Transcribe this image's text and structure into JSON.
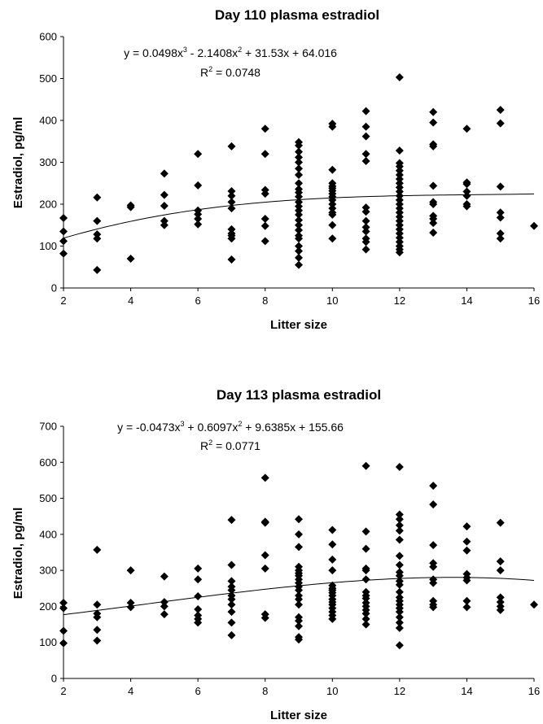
{
  "chart_data": [
    {
      "type": "scatter",
      "title": "Day 110 plasma estradiol",
      "xlabel": "Litter size",
      "ylabel": "Estradiol, pg/ml",
      "xlim": [
        2,
        16
      ],
      "ylim": [
        0,
        600
      ],
      "xticks": [
        "2",
        "4",
        "6",
        "8",
        "10",
        "12",
        "14",
        "16"
      ],
      "yticks": [
        "0",
        "100",
        "200",
        "300",
        "400",
        "500",
        "600"
      ],
      "grid": false,
      "legend": "none",
      "marker": "diamond",
      "equation": {
        "prefix": "y = 0.0498x",
        "exp1": "3",
        "mid1": " - 2.1408x",
        "exp2": "2",
        "rest": " + 31.53x + 64.016"
      },
      "r2": {
        "prefix": "R",
        "exp": "2",
        "rest": " = 0.0748"
      },
      "trendline": {
        "type": "cubic",
        "coefficients": [
          0.0498,
          -2.1408,
          31.53,
          64.016
        ]
      },
      "points": [
        [
          2,
          167
        ],
        [
          2,
          135
        ],
        [
          2,
          112
        ],
        [
          2,
          82
        ],
        [
          3,
          216
        ],
        [
          3,
          160
        ],
        [
          3,
          128
        ],
        [
          3,
          118
        ],
        [
          3,
          43
        ],
        [
          4,
          197
        ],
        [
          4,
          193
        ],
        [
          4,
          70
        ],
        [
          5,
          273
        ],
        [
          5,
          222
        ],
        [
          5,
          196
        ],
        [
          5,
          160
        ],
        [
          5,
          150
        ],
        [
          6,
          320
        ],
        [
          6,
          245
        ],
        [
          6,
          185
        ],
        [
          6,
          176
        ],
        [
          6,
          165
        ],
        [
          6,
          152
        ],
        [
          7,
          338
        ],
        [
          7,
          231
        ],
        [
          7,
          220
        ],
        [
          7,
          205
        ],
        [
          7,
          190
        ],
        [
          7,
          140
        ],
        [
          7,
          130
        ],
        [
          7,
          125
        ],
        [
          7,
          118
        ],
        [
          7,
          68
        ],
        [
          8,
          380
        ],
        [
          8,
          320
        ],
        [
          8,
          234
        ],
        [
          8,
          225
        ],
        [
          8,
          165
        ],
        [
          8,
          148
        ],
        [
          8,
          112
        ],
        [
          9,
          348
        ],
        [
          9,
          340
        ],
        [
          9,
          325
        ],
        [
          9,
          312
        ],
        [
          9,
          300
        ],
        [
          9,
          285
        ],
        [
          9,
          270
        ],
        [
          9,
          250
        ],
        [
          9,
          236
        ],
        [
          9,
          228
        ],
        [
          9,
          218
        ],
        [
          9,
          205
        ],
        [
          9,
          195
        ],
        [
          9,
          185
        ],
        [
          9,
          175
        ],
        [
          9,
          162
        ],
        [
          9,
          150
        ],
        [
          9,
          138
        ],
        [
          9,
          125
        ],
        [
          9,
          118
        ],
        [
          9,
          100
        ],
        [
          9,
          88
        ],
        [
          9,
          72
        ],
        [
          9,
          55
        ],
        [
          10,
          392
        ],
        [
          10,
          385
        ],
        [
          10,
          282
        ],
        [
          10,
          250
        ],
        [
          10,
          243
        ],
        [
          10,
          238
        ],
        [
          10,
          232
        ],
        [
          10,
          225
        ],
        [
          10,
          218
        ],
        [
          10,
          210
        ],
        [
          10,
          200
        ],
        [
          10,
          190
        ],
        [
          10,
          180
        ],
        [
          10,
          175
        ],
        [
          10,
          150
        ],
        [
          10,
          118
        ],
        [
          11,
          422
        ],
        [
          11,
          385
        ],
        [
          11,
          362
        ],
        [
          11,
          320
        ],
        [
          11,
          303
        ],
        [
          11,
          192
        ],
        [
          11,
          182
        ],
        [
          11,
          160
        ],
        [
          11,
          145
        ],
        [
          11,
          135
        ],
        [
          11,
          118
        ],
        [
          11,
          110
        ],
        [
          11,
          92
        ],
        [
          12,
          503
        ],
        [
          12,
          328
        ],
        [
          12,
          298
        ],
        [
          12,
          290
        ],
        [
          12,
          280
        ],
        [
          12,
          270
        ],
        [
          12,
          260
        ],
        [
          12,
          250
        ],
        [
          12,
          240
        ],
        [
          12,
          230
        ],
        [
          12,
          220
        ],
        [
          12,
          210
        ],
        [
          12,
          200
        ],
        [
          12,
          190
        ],
        [
          12,
          180
        ],
        [
          12,
          170
        ],
        [
          12,
          160
        ],
        [
          12,
          150
        ],
        [
          12,
          140
        ],
        [
          12,
          130
        ],
        [
          12,
          120
        ],
        [
          12,
          110
        ],
        [
          12,
          100
        ],
        [
          12,
          92
        ],
        [
          12,
          85
        ],
        [
          13,
          420
        ],
        [
          13,
          395
        ],
        [
          13,
          343
        ],
        [
          13,
          338
        ],
        [
          13,
          244
        ],
        [
          13,
          205
        ],
        [
          13,
          200
        ],
        [
          13,
          172
        ],
        [
          13,
          165
        ],
        [
          13,
          155
        ],
        [
          13,
          132
        ],
        [
          14,
          380
        ],
        [
          14,
          252
        ],
        [
          14,
          248
        ],
        [
          14,
          230
        ],
        [
          14,
          220
        ],
        [
          14,
          200
        ],
        [
          14,
          195
        ],
        [
          15,
          425
        ],
        [
          15,
          393
        ],
        [
          15,
          242
        ],
        [
          15,
          180
        ],
        [
          15,
          168
        ],
        [
          15,
          130
        ],
        [
          15,
          118
        ],
        [
          16,
          148
        ]
      ]
    },
    {
      "type": "scatter",
      "title": "Day 113 plasma estradiol",
      "xlabel": "Litter size",
      "ylabel": "Estradiol, pg/ml",
      "xlim": [
        2,
        16
      ],
      "ylim": [
        0,
        700
      ],
      "xticks": [
        "2",
        "4",
        "6",
        "8",
        "10",
        "12",
        "14",
        "16"
      ],
      "yticks": [
        "0",
        "100",
        "200",
        "300",
        "400",
        "500",
        "600",
        "700"
      ],
      "grid": false,
      "legend": "none",
      "marker": "diamond",
      "equation": {
        "prefix": "y = -0.0473x",
        "exp1": "3",
        "mid1": " + 0.6097x",
        "exp2": "2",
        "rest": " + 9.6385x + 155.66"
      },
      "r2": {
        "prefix": "R",
        "exp": "2",
        "rest": " = 0.0771"
      },
      "trendline": {
        "type": "cubic",
        "coefficients": [
          -0.0473,
          0.6097,
          9.6385,
          155.66
        ]
      },
      "points": [
        [
          2,
          210
        ],
        [
          2,
          195
        ],
        [
          2,
          132
        ],
        [
          2,
          98
        ],
        [
          3,
          357
        ],
        [
          3,
          205
        ],
        [
          3,
          180
        ],
        [
          3,
          170
        ],
        [
          3,
          135
        ],
        [
          3,
          105
        ],
        [
          4,
          300
        ],
        [
          4,
          210
        ],
        [
          4,
          198
        ],
        [
          5,
          283
        ],
        [
          5,
          212
        ],
        [
          5,
          200
        ],
        [
          5,
          178
        ],
        [
          6,
          305
        ],
        [
          6,
          275
        ],
        [
          6,
          228
        ],
        [
          6,
          192
        ],
        [
          6,
          175
        ],
        [
          6,
          165
        ],
        [
          6,
          155
        ],
        [
          7,
          440
        ],
        [
          7,
          315
        ],
        [
          7,
          270
        ],
        [
          7,
          255
        ],
        [
          7,
          245
        ],
        [
          7,
          230
        ],
        [
          7,
          220
        ],
        [
          7,
          205
        ],
        [
          7,
          185
        ],
        [
          7,
          155
        ],
        [
          7,
          120
        ],
        [
          8,
          557
        ],
        [
          8,
          435
        ],
        [
          8,
          432
        ],
        [
          8,
          342
        ],
        [
          8,
          305
        ],
        [
          8,
          178
        ],
        [
          8,
          168
        ],
        [
          9,
          442
        ],
        [
          9,
          400
        ],
        [
          9,
          365
        ],
        [
          9,
          310
        ],
        [
          9,
          300
        ],
        [
          9,
          292
        ],
        [
          9,
          285
        ],
        [
          9,
          275
        ],
        [
          9,
          265
        ],
        [
          9,
          255
        ],
        [
          9,
          245
        ],
        [
          9,
          230
        ],
        [
          9,
          220
        ],
        [
          9,
          205
        ],
        [
          9,
          170
        ],
        [
          9,
          160
        ],
        [
          9,
          145
        ],
        [
          9,
          115
        ],
        [
          9,
          108
        ],
        [
          10,
          412
        ],
        [
          10,
          372
        ],
        [
          10,
          330
        ],
        [
          10,
          300
        ],
        [
          10,
          258
        ],
        [
          10,
          250
        ],
        [
          10,
          245
        ],
        [
          10,
          238
        ],
        [
          10,
          230
        ],
        [
          10,
          220
        ],
        [
          10,
          212
        ],
        [
          10,
          205
        ],
        [
          10,
          195
        ],
        [
          10,
          185
        ],
        [
          10,
          175
        ],
        [
          10,
          165
        ],
        [
          11,
          590
        ],
        [
          11,
          408
        ],
        [
          11,
          360
        ],
        [
          11,
          305
        ],
        [
          11,
          300
        ],
        [
          11,
          275
        ],
        [
          11,
          240
        ],
        [
          11,
          230
        ],
        [
          11,
          222
        ],
        [
          11,
          210
        ],
        [
          11,
          200
        ],
        [
          11,
          190
        ],
        [
          11,
          180
        ],
        [
          11,
          165
        ],
        [
          11,
          150
        ],
        [
          12,
          587
        ],
        [
          12,
          455
        ],
        [
          12,
          442
        ],
        [
          12,
          425
        ],
        [
          12,
          410
        ],
        [
          12,
          385
        ],
        [
          12,
          340
        ],
        [
          12,
          315
        ],
        [
          12,
          295
        ],
        [
          12,
          285
        ],
        [
          12,
          270
        ],
        [
          12,
          260
        ],
        [
          12,
          240
        ],
        [
          12,
          225
        ],
        [
          12,
          215
        ],
        [
          12,
          205
        ],
        [
          12,
          195
        ],
        [
          12,
          185
        ],
        [
          12,
          170
        ],
        [
          12,
          155
        ],
        [
          12,
          140
        ],
        [
          12,
          92
        ],
        [
          13,
          535
        ],
        [
          13,
          483
        ],
        [
          13,
          370
        ],
        [
          13,
          320
        ],
        [
          13,
          310
        ],
        [
          13,
          275
        ],
        [
          13,
          265
        ],
        [
          13,
          215
        ],
        [
          13,
          205
        ],
        [
          13,
          198
        ],
        [
          14,
          422
        ],
        [
          14,
          380
        ],
        [
          14,
          355
        ],
        [
          14,
          290
        ],
        [
          14,
          280
        ],
        [
          14,
          272
        ],
        [
          14,
          215
        ],
        [
          14,
          198
        ],
        [
          15,
          432
        ],
        [
          15,
          325
        ],
        [
          15,
          300
        ],
        [
          15,
          225
        ],
        [
          15,
          212
        ],
        [
          15,
          200
        ],
        [
          15,
          190
        ],
        [
          16,
          205
        ]
      ]
    }
  ]
}
